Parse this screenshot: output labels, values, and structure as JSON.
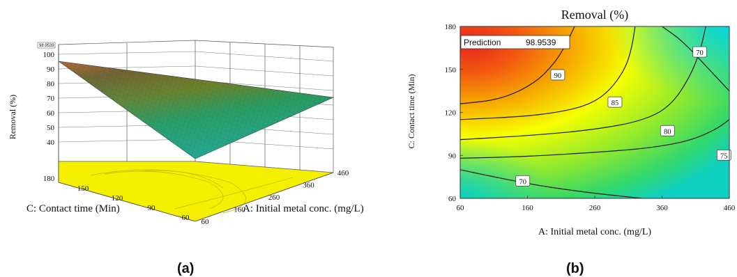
{
  "chart_data": [
    {
      "type": "surface",
      "panel_label": "(a)",
      "zlabel": "Removal (%)",
      "xlabel": "A: Initial metal conc. (mg/L)",
      "ylabel": "C: Contact time (Min)",
      "x_ticks": [
        "60",
        "160",
        "260",
        "360",
        "460"
      ],
      "y_ticks": [
        "60",
        "90",
        "120",
        "150",
        "180"
      ],
      "z_ticks": [
        "40",
        "50",
        "60",
        "70",
        "80",
        "90",
        "100"
      ],
      "z_max_marker": "98.9539",
      "xlim": [
        60,
        460
      ],
      "ylim": [
        60,
        180
      ],
      "zlim": [
        40,
        100
      ],
      "surface_corners": [
        {
          "x": 60,
          "y": 180,
          "z": 99
        },
        {
          "x": 460,
          "y": 180,
          "z": 72
        },
        {
          "x": 60,
          "y": 60,
          "z": 74
        },
        {
          "x": 460,
          "y": 60,
          "z": 76
        }
      ],
      "surface_colors": {
        "high": "#e8541e",
        "mid": "#9a7a1a",
        "low": "#1fa89a"
      },
      "floor_color": "#f4f000"
    },
    {
      "type": "contour",
      "panel_label": "(b)",
      "title": "Removal (%)",
      "xlabel": "A: Initial metal conc. (mg/L)",
      "ylabel": "C: Contact time (Min)",
      "x_ticks": [
        "60",
        "160",
        "260",
        "360",
        "460"
      ],
      "y_ticks": [
        "60",
        "90",
        "120",
        "150",
        "180"
      ],
      "xlim": [
        60,
        460
      ],
      "ylim": [
        60,
        180
      ],
      "prediction": {
        "label": "Prediction",
        "value": "98.9539"
      },
      "contours": [
        {
          "label": "70",
          "points": [
            [
              360,
              180
            ],
            [
              390,
              170
            ],
            [
              430,
              150
            ],
            [
              460,
              135
            ]
          ],
          "label_at": [
            416,
            162
          ]
        },
        {
          "label": "90",
          "points": [
            [
              60,
              126
            ],
            [
              120,
              129
            ],
            [
              170,
              140
            ],
            [
              200,
              154
            ],
            [
              218,
              168
            ],
            [
              230,
              180
            ]
          ],
          "label_at": [
            205,
            146
          ]
        },
        {
          "label": "85",
          "points": [
            [
              60,
              115
            ],
            [
              150,
              117
            ],
            [
              205,
              120
            ],
            [
              250,
              125
            ],
            [
              280,
              134
            ],
            [
              305,
              150
            ],
            [
              315,
              165
            ],
            [
              320,
              180
            ]
          ],
          "label_at": [
            290,
            127
          ]
        },
        {
          "label": "80",
          "points": [
            [
              60,
              101
            ],
            [
              170,
              104
            ],
            [
              260,
              108
            ],
            [
              330,
              114
            ],
            [
              372,
              124
            ],
            [
              402,
              145
            ],
            [
              418,
              165
            ],
            [
              425,
              180
            ]
          ],
          "label_at": [
            368,
            107
          ]
        },
        {
          "label": "75",
          "points": [
            [
              60,
              88
            ],
            [
              150,
              89
            ],
            [
              260,
              92
            ],
            [
              340,
              95
            ],
            [
              400,
              100
            ],
            [
              440,
              108
            ],
            [
              460,
              115
            ]
          ],
          "label_at": [
            452,
            90
          ]
        },
        {
          "label": "70",
          "points": [
            [
              60,
              80
            ],
            [
              110,
              75
            ],
            [
              175,
              69
            ],
            [
              250,
              64
            ],
            [
              330,
              60
            ]
          ],
          "label_at": [
            153,
            72
          ]
        }
      ],
      "heat_colors": {
        "max": "#e8241e",
        "high": "#f7a800",
        "mid": "#f6ff00",
        "low": "#6ee238",
        "min": "#00cfd0"
      }
    }
  ]
}
